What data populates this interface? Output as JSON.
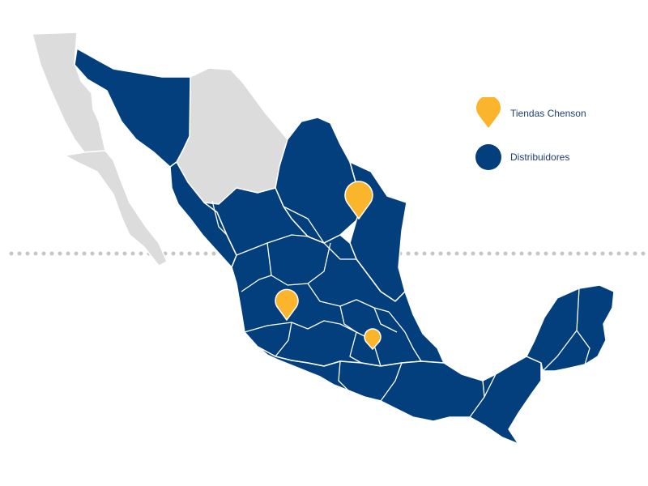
{
  "colors": {
    "served_region": "#023f7c",
    "unserved_region": "#dcdcdc",
    "border": "#ffffff",
    "pin": "#fab52c",
    "dotted_line": "#c6c6c6",
    "legend_text": "#1d3f73"
  },
  "legend": {
    "stores_label": "Tiendas Chenson",
    "stores_icon": "pin-icon",
    "distributors_label": "Distribuidores",
    "distributors_icon": "circle-icon"
  },
  "regions": [
    {
      "name": "baja-california",
      "status": "unserved"
    },
    {
      "name": "baja-california-sur",
      "status": "unserved"
    },
    {
      "name": "chihuahua",
      "status": "unserved"
    },
    {
      "name": "durango",
      "status": "unserved"
    },
    {
      "name": "sonora",
      "status": "served"
    },
    {
      "name": "coahuila",
      "status": "served"
    },
    {
      "name": "nuevo-leon",
      "status": "served"
    },
    {
      "name": "tamaulipas",
      "status": "served"
    },
    {
      "name": "sinaloa",
      "status": "served"
    },
    {
      "name": "central-states",
      "status": "served"
    },
    {
      "name": "southern-states",
      "status": "served"
    },
    {
      "name": "yucatan-peninsula",
      "status": "served"
    }
  ],
  "markers": [
    {
      "name": "store-marker-monterrey",
      "size": "large"
    },
    {
      "name": "store-marker-guadalajara",
      "size": "medium"
    },
    {
      "name": "store-marker-mexico-city",
      "size": "small"
    }
  ]
}
